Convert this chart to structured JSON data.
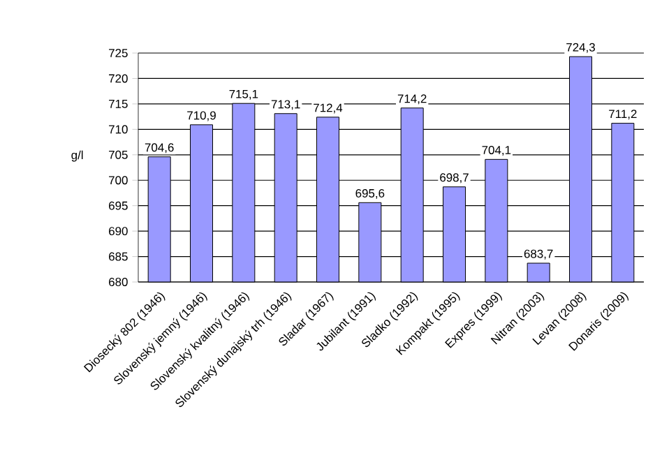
{
  "chart_data": {
    "type": "bar",
    "ylabel": "g/l",
    "categories": [
      "Diosecký 802 (1946)",
      "Slovenský jemný (1946)",
      "Slovenský kvalitný (1946)",
      "Slovenský dunajský trh (1946)",
      "Sladar (1967)",
      "Jubilant (1991)",
      "Sladko (1992)",
      "Kompakt (1995)",
      "Expres (1999)",
      "Nitran (2003)",
      "Levan (2008)",
      "Donaris (2009)"
    ],
    "values": [
      704.6,
      710.9,
      715.1,
      713.1,
      712.4,
      695.6,
      714.2,
      698.7,
      704.1,
      683.7,
      724.3,
      711.2
    ],
    "value_labels": [
      "704,6",
      "710,9",
      "715,1",
      "713,1",
      "712,4",
      "695,6",
      "714,2",
      "698,7",
      "704,1",
      "683,7",
      "724,3",
      "711,2"
    ],
    "color": "#9999ff",
    "ylim": [
      680,
      725
    ],
    "yticks": [
      680,
      685,
      690,
      695,
      700,
      705,
      710,
      715,
      720,
      725
    ],
    "grid": "y"
  }
}
